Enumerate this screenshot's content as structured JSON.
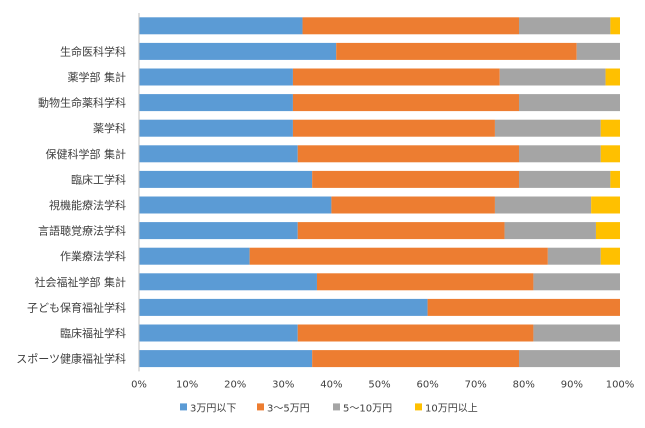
{
  "chart_data": {
    "type": "bar",
    "orientation": "horizontal",
    "stacked": "percent",
    "categories": [
      "",
      "生命医科学科",
      "薬学部 集計",
      "動物生命薬科学科",
      "薬学科",
      "保健科学部 集計",
      "臨床工学科",
      "視機能療法学科",
      "言語聴覚療法学科",
      "作業療法学科",
      "社会福祉学部 集計",
      "子ども保育福祉学科",
      "臨床福祉学科",
      "スポーツ健康福祉学科"
    ],
    "series": [
      {
        "name": "3万円以下",
        "color": "#5B9BD5",
        "values": [
          34,
          41,
          32,
          32,
          32,
          33,
          36,
          40,
          33,
          23,
          37,
          60,
          33,
          36
        ]
      },
      {
        "name": "3～5万円",
        "color": "#ED7D31",
        "values": [
          45,
          50,
          43,
          47,
          42,
          46,
          43,
          34,
          43,
          62,
          45,
          40,
          49,
          43
        ]
      },
      {
        "name": "5～10万円",
        "color": "#A5A5A5",
        "values": [
          19,
          9,
          22,
          21,
          22,
          17,
          19,
          20,
          19,
          11,
          18,
          0,
          18,
          21
        ]
      },
      {
        "name": "10万円以上",
        "color": "#FFC000",
        "values": [
          2,
          0,
          3,
          0,
          4,
          4,
          2,
          6,
          5,
          4,
          0,
          0,
          0,
          0
        ]
      }
    ],
    "xlim": [
      0,
      100
    ],
    "xticks": [
      "0%",
      "10%",
      "20%",
      "30%",
      "40%",
      "50%",
      "60%",
      "70%",
      "80%",
      "90%",
      "100%"
    ],
    "grid": false,
    "legend": "bottom"
  }
}
